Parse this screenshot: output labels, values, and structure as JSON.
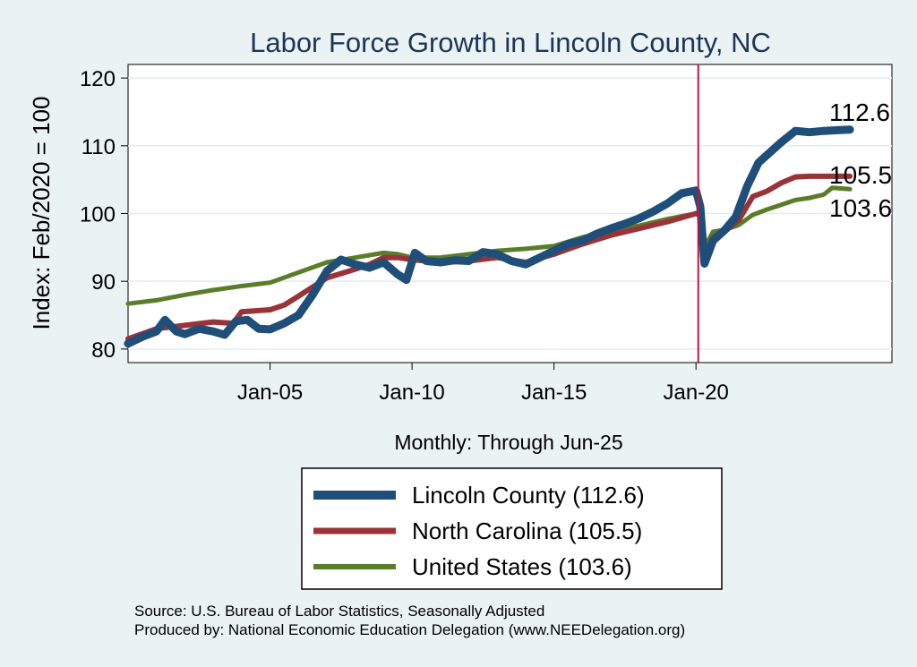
{
  "chart_data": {
    "type": "line",
    "title": "Labor Force Growth in Lincoln  County, NC",
    "ylabel": "Index: Feb/2020 = 100",
    "xlabel": "Monthly: Through Jun-25",
    "ylim": [
      78,
      122
    ],
    "yticks": [
      80,
      90,
      100,
      110,
      120
    ],
    "xlim": [
      2000.0,
      2026.9
    ],
    "xticks": [
      {
        "x": 2005.0,
        "label": "Jan-05"
      },
      {
        "x": 2010.0,
        "label": "Jan-10"
      },
      {
        "x": 2015.0,
        "label": "Jan-15"
      },
      {
        "x": 2020.0,
        "label": "Jan-20"
      }
    ],
    "reference_line": {
      "x": 2020.08,
      "color": "#c0153f"
    },
    "grid": true,
    "legend_position": "bottom",
    "series": [
      {
        "name": "Lincoln  County (112.6)",
        "color": "#1f4e79",
        "width": 9,
        "end_label": "112.6",
        "points": [
          [
            2000.0,
            80.8
          ],
          [
            2000.5,
            81.8
          ],
          [
            2001.0,
            82.6
          ],
          [
            2001.3,
            84.3
          ],
          [
            2001.7,
            82.6
          ],
          [
            2002.0,
            82.2
          ],
          [
            2002.5,
            83.0
          ],
          [
            2003.0,
            82.6
          ],
          [
            2003.4,
            82.1
          ],
          [
            2003.8,
            84.1
          ],
          [
            2004.2,
            84.3
          ],
          [
            2004.6,
            83.0
          ],
          [
            2005.0,
            82.9
          ],
          [
            2005.5,
            83.8
          ],
          [
            2006.0,
            85.0
          ],
          [
            2006.5,
            88.0
          ],
          [
            2007.0,
            91.5
          ],
          [
            2007.5,
            93.2
          ],
          [
            2008.0,
            92.5
          ],
          [
            2008.5,
            92.0
          ],
          [
            2009.0,
            92.8
          ],
          [
            2009.5,
            91.0
          ],
          [
            2009.8,
            90.2
          ],
          [
            2010.1,
            94.2
          ],
          [
            2010.5,
            93.0
          ],
          [
            2011.0,
            92.8
          ],
          [
            2011.5,
            93.1
          ],
          [
            2012.0,
            93.0
          ],
          [
            2012.5,
            94.3
          ],
          [
            2013.0,
            94.0
          ],
          [
            2013.5,
            93.0
          ],
          [
            2014.0,
            92.5
          ],
          [
            2014.5,
            93.5
          ],
          [
            2015.0,
            94.5
          ],
          [
            2015.5,
            95.5
          ],
          [
            2016.0,
            96.0
          ],
          [
            2016.5,
            97.0
          ],
          [
            2017.0,
            97.8
          ],
          [
            2017.5,
            98.5
          ],
          [
            2018.0,
            99.3
          ],
          [
            2018.5,
            100.3
          ],
          [
            2019.0,
            101.5
          ],
          [
            2019.5,
            103.0
          ],
          [
            2020.0,
            103.4
          ],
          [
            2020.15,
            101.0
          ],
          [
            2020.3,
            92.6
          ],
          [
            2020.6,
            96.0
          ],
          [
            2021.0,
            97.5
          ],
          [
            2021.4,
            99.5
          ],
          [
            2021.8,
            104.0
          ],
          [
            2022.2,
            107.5
          ],
          [
            2022.6,
            109.0
          ],
          [
            2023.0,
            110.5
          ],
          [
            2023.5,
            112.2
          ],
          [
            2024.0,
            112.0
          ],
          [
            2024.5,
            112.2
          ],
          [
            2025.0,
            112.3
          ],
          [
            2025.42,
            112.4
          ]
        ]
      },
      {
        "name": "North Carolina (105.5)",
        "color": "#9a3338",
        "width": 6,
        "end_label": "105.5",
        "points": [
          [
            2000.0,
            81.5
          ],
          [
            2001.0,
            83.0
          ],
          [
            2002.0,
            83.5
          ],
          [
            2003.0,
            84.0
          ],
          [
            2003.7,
            83.8
          ],
          [
            2004.0,
            85.5
          ],
          [
            2005.0,
            85.8
          ],
          [
            2005.5,
            86.5
          ],
          [
            2006.0,
            87.8
          ],
          [
            2007.0,
            90.5
          ],
          [
            2008.0,
            91.8
          ],
          [
            2008.5,
            92.5
          ],
          [
            2009.0,
            93.5
          ],
          [
            2009.5,
            93.5
          ],
          [
            2010.0,
            93.2
          ],
          [
            2011.0,
            92.8
          ],
          [
            2012.0,
            93.0
          ],
          [
            2013.0,
            93.5
          ],
          [
            2014.0,
            92.8
          ],
          [
            2015.0,
            94.0
          ],
          [
            2016.0,
            95.5
          ],
          [
            2017.0,
            96.8
          ],
          [
            2018.0,
            97.8
          ],
          [
            2019.0,
            98.8
          ],
          [
            2020.0,
            100.0
          ],
          [
            2020.15,
            99.8
          ],
          [
            2020.3,
            93.5
          ],
          [
            2020.6,
            96.5
          ],
          [
            2021.0,
            97.3
          ],
          [
            2021.5,
            99.0
          ],
          [
            2022.0,
            102.5
          ],
          [
            2022.5,
            103.3
          ],
          [
            2023.0,
            104.5
          ],
          [
            2023.5,
            105.4
          ],
          [
            2024.0,
            105.5
          ],
          [
            2024.5,
            105.5
          ],
          [
            2025.42,
            105.5
          ]
        ]
      },
      {
        "name": "United States (103.6)",
        "color": "#5a7d2a",
        "width": 5,
        "end_label": "103.6",
        "points": [
          [
            2000.0,
            86.7
          ],
          [
            2001.0,
            87.2
          ],
          [
            2002.0,
            88.0
          ],
          [
            2003.0,
            88.7
          ],
          [
            2004.0,
            89.3
          ],
          [
            2005.0,
            89.8
          ],
          [
            2006.0,
            91.3
          ],
          [
            2007.0,
            92.8
          ],
          [
            2008.0,
            93.5
          ],
          [
            2009.0,
            94.2
          ],
          [
            2009.5,
            94.0
          ],
          [
            2010.0,
            93.5
          ],
          [
            2011.0,
            93.5
          ],
          [
            2012.0,
            94.0
          ],
          [
            2013.0,
            94.5
          ],
          [
            2014.0,
            94.8
          ],
          [
            2015.0,
            95.2
          ],
          [
            2016.0,
            96.5
          ],
          [
            2017.0,
            97.5
          ],
          [
            2018.0,
            98.2
          ],
          [
            2019.0,
            99.2
          ],
          [
            2020.0,
            100.0
          ],
          [
            2020.15,
            99.8
          ],
          [
            2020.3,
            95.0
          ],
          [
            2020.6,
            97.3
          ],
          [
            2021.0,
            97.6
          ],
          [
            2021.5,
            98.3
          ],
          [
            2022.0,
            99.8
          ],
          [
            2022.5,
            100.6
          ],
          [
            2023.0,
            101.3
          ],
          [
            2023.5,
            102.0
          ],
          [
            2024.0,
            102.3
          ],
          [
            2024.5,
            102.8
          ],
          [
            2024.8,
            103.8
          ],
          [
            2025.42,
            103.6
          ]
        ]
      }
    ]
  },
  "source_note": "Source: U.S. Bureau of Labor Statistics, Seasonally Adjusted",
  "produced_note": "Produced by: National Economic Education Delegation (www.NEEDelegation.org)"
}
